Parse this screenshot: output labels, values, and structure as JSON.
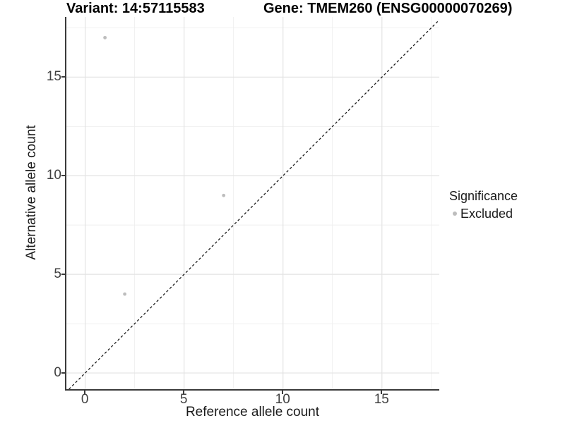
{
  "titles": {
    "variant": "Variant: 14:57115583",
    "gene": "Gene: TMEM260 (ENSG00000070269)"
  },
  "chart_data": {
    "type": "scatter",
    "title_left": "Variant: 14:57115583",
    "title_right": "Gene: TMEM260 (ENSG00000070269)",
    "xlabel": "Reference allele count",
    "ylabel": "Alternative allele count",
    "xlim": [
      -0.95,
      17.9
    ],
    "ylim": [
      -0.82,
      18.05
    ],
    "x_ticks": [
      0,
      5,
      10,
      15
    ],
    "y_ticks": [
      0,
      5,
      10,
      15
    ],
    "x_tick_labels": [
      "0",
      "5",
      "10",
      "15"
    ],
    "y_tick_labels": [
      "0",
      "5",
      "10",
      "15"
    ],
    "x_minor_ticks": [
      2.5,
      7.5,
      12.5,
      17.5
    ],
    "y_minor_ticks": [
      2.5,
      7.5,
      12.5,
      17.5
    ],
    "grid": true,
    "reference_line": {
      "type": "identity y=x",
      "style": "dashed",
      "color": "#1a1a1a"
    },
    "series": [
      {
        "name": "Excluded",
        "color": "#bdbdbd",
        "points": [
          {
            "x": 1,
            "y": 17
          },
          {
            "x": 2,
            "y": 4
          },
          {
            "x": 7,
            "y": 9
          }
        ]
      }
    ],
    "legend": {
      "title": "Significance",
      "position": "right",
      "entries": [
        {
          "label": "Excluded",
          "color": "#bdbdbd"
        }
      ]
    }
  },
  "colors": {
    "point": "#bdbdbd",
    "grid_major": "#e3e3e3",
    "grid_minor": "#ededed",
    "axis_line": "#3a3a3a",
    "tick_text": "#404040",
    "title_text": "#000000",
    "dashed_line": "#1a1a1a",
    "background": "#ffffff"
  }
}
